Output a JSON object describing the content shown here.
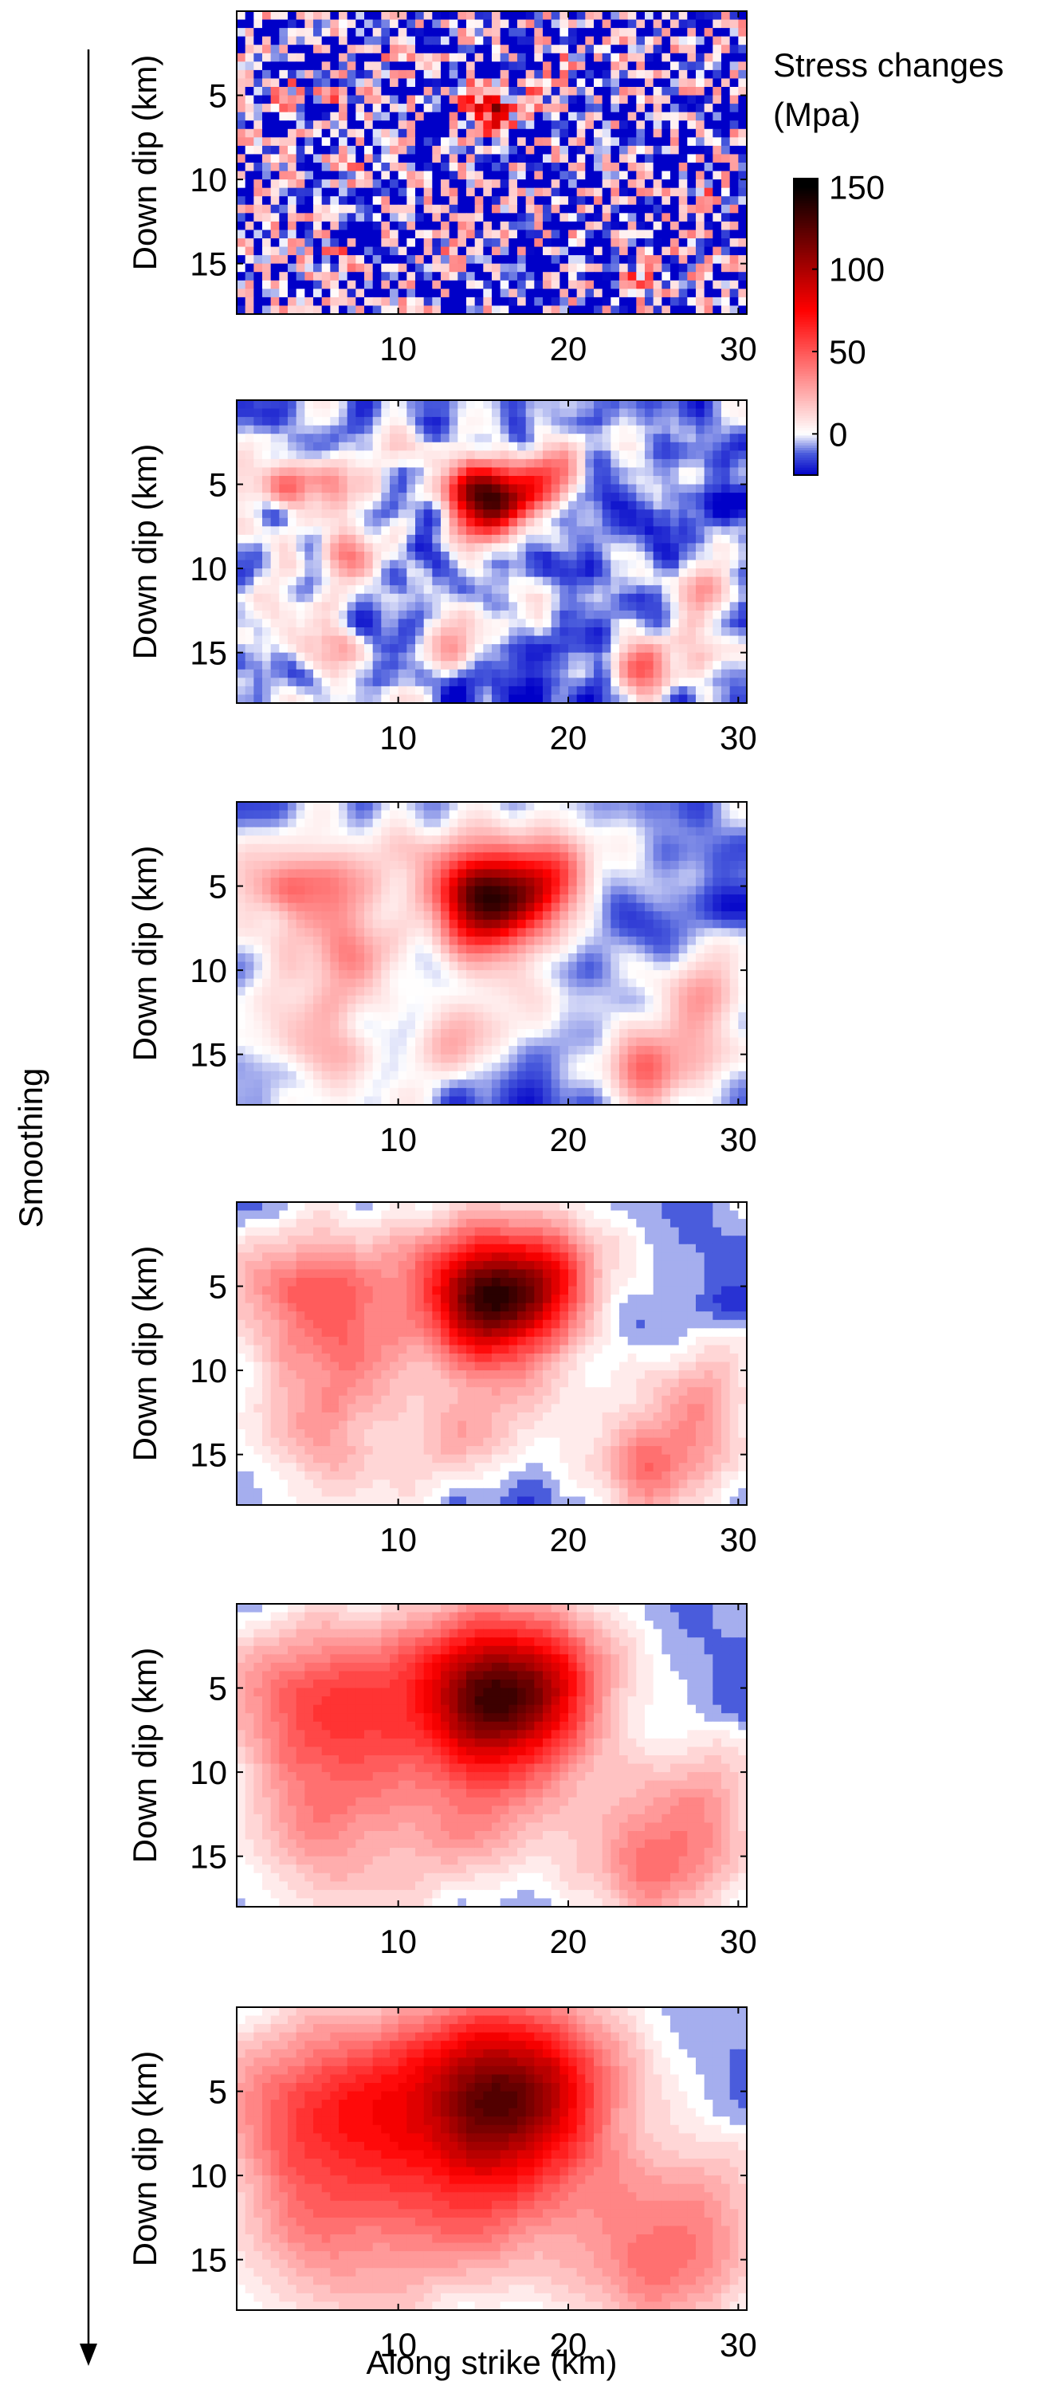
{
  "chart_data": {
    "type": "heatmap",
    "panel_count": 6,
    "xlabel": "Along strike (km)",
    "ylabel": "Down dip (km)",
    "xticks": [
      10,
      20,
      30
    ],
    "yticks": [
      5,
      10,
      15
    ],
    "xlim": [
      0.5,
      30.5
    ],
    "ylim": [
      0,
      18
    ],
    "y_direction": "down",
    "grid_cells_x": 60,
    "grid_cells_y": 36,
    "smoothing_label": "Smoothing",
    "colorbar": {
      "title_line1": "Stress changes",
      "title_line2": "(Mpa)",
      "ticks": [
        0,
        50,
        100,
        150
      ],
      "range": [
        -25,
        155
      ],
      "colors": {
        "min": "#0000c8",
        "low": "#4a5cdc",
        "zero": "#ffffff",
        "mid": "#ff0000",
        "max": "#000000"
      }
    },
    "background_level": -11,
    "hotspots": [
      {
        "x": 15.5,
        "y": 6.0,
        "peak": 135
      },
      {
        "x": 18.5,
        "y": 4.8,
        "peak": 60
      },
      {
        "x": 13.5,
        "y": 5.0,
        "peak": 42
      },
      {
        "x": 7.0,
        "y": 9.5,
        "peak": 60
      },
      {
        "x": 3.5,
        "y": 4.8,
        "peak": 45
      },
      {
        "x": 6.0,
        "y": 5.2,
        "peak": 38
      },
      {
        "x": 24.0,
        "y": 16.0,
        "peak": 50
      },
      {
        "x": 6.5,
        "y": 14.5,
        "peak": 40
      },
      {
        "x": 13.0,
        "y": 15.0,
        "peak": 36
      },
      {
        "x": 28.0,
        "y": 11.0,
        "peak": 42
      },
      {
        "x": 18.0,
        "y": 12.5,
        "peak": 30
      },
      {
        "x": 27.0,
        "y": 14.5,
        "peak": 25
      },
      {
        "x": 20.0,
        "y": 3.0,
        "peak": 20
      },
      {
        "x": 9.5,
        "y": 2.5,
        "peak": 18
      },
      {
        "x": 2.0,
        "y": 12.0,
        "peak": 15
      }
    ]
  }
}
